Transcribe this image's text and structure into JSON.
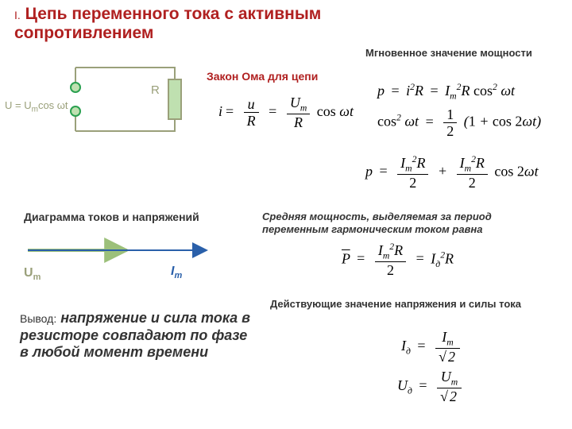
{
  "title_roman": "I.",
  "title_main": "Цепь переменного тока с активным сопротивлением",
  "circuit": {
    "U_label_html": "U = U<sub>m</sub>cos ωt",
    "R_label": "R",
    "wire_color": "#9aa07a",
    "terminal_fill": "#bfe0b0",
    "terminal_stroke": "#2aa050",
    "resistor_fill": "#bfe0b0"
  },
  "ohm_title": "Закон Ома для цепи",
  "power_title": "Мгновенное значение мощности",
  "diagram_title": "Диаграмма токов и напряжений",
  "avg_power_title": "Средняя мощность, выделяемая за период переменным гармоническим током равна",
  "eff_title": "Действующие значение напряжения и силы тока",
  "phasor": {
    "Um_label_html": "U<sub>m</sub>",
    "Im_label_html": "I<sub>m</sub>",
    "Um_color": "#9cc07a",
    "Im_color": "#2a60aa"
  },
  "conclusion": {
    "lead": "Вывод:",
    "text": "напряжение и сила тока в резисторе совпадают по фазе в любой момент времени"
  }
}
